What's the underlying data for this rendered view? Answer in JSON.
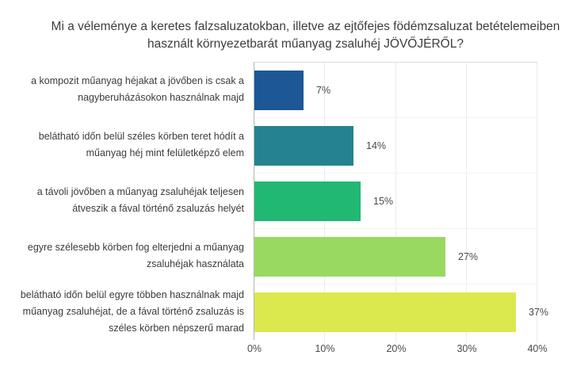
{
  "title": "Mi a véleménye a keretes falzsaluzatokban, illetve az ejtőfejes födémzsaluzat betételemeiben használt környezetbarát műanyag zsaluhéj JÖVŐJÉRŐL?",
  "chart_data": {
    "type": "bar",
    "orientation": "horizontal",
    "title": "Mi a véleménye a keretes falzsaluzatokban, illetve az ejtőfejes födémzsaluzat betételemeiben használt környezetbarát műanyag zsaluhéj JÖVŐJÉRŐL?",
    "categories": [
      "a kompozit műanyag héjakat a jövőben is csak a nagyberuházásokon használnak majd",
      "belátható időn belül széles körben teret hódít a műanyag héj mint felületképző elem",
      "a távoli jövőben a műanyag zsaluhéjak teljesen átveszik a fával történő zsaluzás helyét",
      "egyre szélesebb körben fog elterjedni a műanyag zsaluhéjak használata",
      "belátható időn belül egyre többen használnak majd műanyag zsaluhéjat, de a fával történő zsaluzás is széles körben népszerű marad"
    ],
    "values": [
      7,
      14,
      15,
      27,
      37
    ],
    "value_labels": [
      "7%",
      "14%",
      "15%",
      "27%",
      "37%"
    ],
    "bar_colors": [
      "#1d5795",
      "#24838f",
      "#20b873",
      "#9ad95f",
      "#dbe84e"
    ],
    "xlabel": "",
    "ylabel": "",
    "xlim": [
      0,
      40
    ],
    "x_tick_values": [
      0,
      10,
      20,
      30,
      40
    ],
    "x_tick_labels": [
      "0%",
      "10%",
      "20%",
      "30%",
      "40%"
    ],
    "grid": true,
    "legend": "none"
  }
}
